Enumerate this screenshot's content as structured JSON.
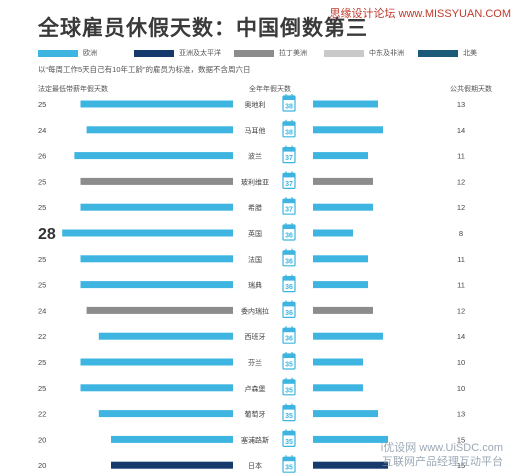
{
  "title": "全球雇员休假天数：中国倒数第三",
  "watermark_top": "思缘设计论坛 www.MISSYUAN.COM",
  "watermark_bottom": [
    "i优设网 www.UiSDC.com",
    "互联网产品经理互动平台"
  ],
  "note": "以“每周工作5天自己有10年工龄”的雇员为标准，数据不含周六日",
  "column_headers": {
    "left": "法定最低带薪年假天数",
    "middle": "全年年假天数",
    "right": "公共假期天数"
  },
  "legend": [
    {
      "name": "欧洲",
      "color": "#3db5e0"
    },
    {
      "name": "亚洲及太平洋",
      "color": "#163a6b"
    },
    {
      "name": "拉丁美洲",
      "color": "#8c8c8c"
    },
    {
      "name": "中东及非洲",
      "color": "#c9c9c9"
    },
    {
      "name": "北美",
      "color": "#1c5a7a"
    }
  ],
  "colors": {
    "calendar": "#3db5e0",
    "text": "#444444"
  },
  "chart_data": {
    "type": "bar",
    "layout": "butterfly",
    "categories": [
      "奥地利",
      "马耳他",
      "波兰",
      "玻利维亚",
      "希腊",
      "英国",
      "法国",
      "瑞典",
      "委内瑞拉",
      "西班牙",
      "芬兰",
      "卢森堡",
      "葡萄牙",
      "塞浦路斯",
      "日本"
    ],
    "regions": [
      "欧洲",
      "欧洲",
      "欧洲",
      "拉丁美洲",
      "欧洲",
      "欧洲",
      "欧洲",
      "欧洲",
      "拉丁美洲",
      "欧洲",
      "欧洲",
      "欧洲",
      "欧洲",
      "欧洲",
      "亚洲及太平洋"
    ],
    "series": [
      {
        "name": "法定最低带薪年假天数",
        "values": [
          25,
          24,
          26,
          25,
          25,
          28,
          25,
          25,
          24,
          22,
          25,
          25,
          22,
          20,
          20
        ]
      },
      {
        "name": "全年年假天数",
        "values": [
          38,
          38,
          37,
          37,
          37,
          36,
          36,
          36,
          36,
          36,
          35,
          35,
          35,
          35,
          35
        ]
      },
      {
        "name": "公共假期天数",
        "values": [
          13,
          14,
          11,
          12,
          12,
          8,
          11,
          11,
          12,
          14,
          10,
          10,
          13,
          15,
          15
        ]
      }
    ]
  }
}
